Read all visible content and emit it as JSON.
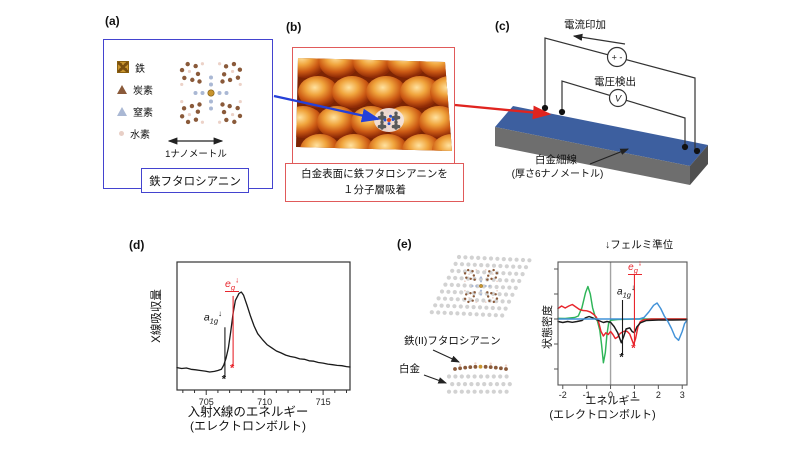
{
  "figure": {
    "background": "#ffffff"
  },
  "panels": {
    "a": {
      "tag": "(a)",
      "legend": [
        {
          "name": "iron",
          "label": "鉄",
          "color": "#c8942e"
        },
        {
          "name": "carbon",
          "label": "炭素",
          "color": "#8a5a3a"
        },
        {
          "name": "nitrogen",
          "label": "窒素",
          "color": "#aab8d4"
        },
        {
          "name": "hydrogen",
          "label": "水素",
          "color": "#e8cfc6"
        }
      ],
      "scale_label": "1ナノメートル",
      "caption": "鉄フタロシアニン",
      "box_color": "#4343cf"
    },
    "b": {
      "tag": "(b)",
      "caption_line1": "白金表面に鉄フタロシアニンを",
      "caption_line2": "１分子層吸着",
      "box_color": "#e05a5a"
    },
    "c": {
      "tag": "(c)",
      "current_label": "電流印加",
      "voltage_label": "電圧検出",
      "source_symbol": "+ -",
      "voltmeter_symbol": "V",
      "wire_label_line1": "白金細線",
      "wire_label_line2": "(厚さ6ナノメートル)",
      "slab_color": "#3d5f9f"
    },
    "d": {
      "tag": "(d)",
      "ylabel": "X線吸収量",
      "xlabel_line1": "入射X線のエネルギー",
      "xlabel_line2": "(エレクトロンボルト)"
    },
    "e": {
      "tag": "(e)",
      "fermi_label": "↓フェルミ準位",
      "molecule_label": "鉄(II)フタロシアニン",
      "platinum_label": "白金",
      "ylabel": "状態密度",
      "xlabel_line1": "エネルギー",
      "xlabel_line2": "(エレクトロンボルト)"
    }
  },
  "arrows": {
    "a_to_b_color": "#2540d8",
    "b_to_c_color": "#e0241f"
  },
  "chart_data": [
    {
      "type": "line",
      "panel": "d",
      "xlabel": "入射X線のエネルギー (エレクトロンボルト)",
      "ylabel": "X線吸収量",
      "xlim": [
        702.5,
        717.3
      ],
      "xticks": [
        705,
        710,
        715
      ],
      "minor_xtick_step": 1,
      "ylim": [
        0,
        1
      ],
      "grid": false,
      "series": [
        {
          "name": "X線吸収スペクトル",
          "color": "#1a1a1a",
          "points": [
            [
              702.5,
              0.175
            ],
            [
              702.9,
              0.168
            ],
            [
              703.3,
              0.172
            ],
            [
              703.7,
              0.162
            ],
            [
              704.1,
              0.158
            ],
            [
              704.5,
              0.152
            ],
            [
              704.9,
              0.148
            ],
            [
              705.3,
              0.141
            ],
            [
              705.7,
              0.145
            ],
            [
              706.0,
              0.152
            ],
            [
              706.3,
              0.162
            ],
            [
              706.5,
              0.195
            ],
            [
              706.7,
              0.25
            ],
            [
              706.9,
              0.33
            ],
            [
              707.1,
              0.46
            ],
            [
              707.3,
              0.6
            ],
            [
              707.5,
              0.7
            ],
            [
              707.8,
              0.755
            ],
            [
              708.0,
              0.766
            ],
            [
              708.2,
              0.74
            ],
            [
              708.5,
              0.66
            ],
            [
              708.8,
              0.575
            ],
            [
              709.1,
              0.5
            ],
            [
              709.4,
              0.44
            ],
            [
              709.8,
              0.395
            ],
            [
              710.2,
              0.355
            ],
            [
              710.6,
              0.33
            ],
            [
              711.0,
              0.305
            ],
            [
              711.4,
              0.29
            ],
            [
              711.8,
              0.273
            ],
            [
              712.2,
              0.262
            ],
            [
              712.6,
              0.255
            ],
            [
              713.0,
              0.243
            ],
            [
              713.4,
              0.24
            ],
            [
              713.8,
              0.228
            ],
            [
              714.2,
              0.225
            ],
            [
              714.6,
              0.215
            ],
            [
              715.0,
              0.21
            ],
            [
              715.4,
              0.202
            ],
            [
              715.8,
              0.198
            ],
            [
              716.2,
              0.192
            ],
            [
              716.6,
              0.19
            ],
            [
              717.0,
              0.183
            ],
            [
              717.3,
              0.18
            ]
          ]
        }
      ],
      "annotations": [
        {
          "base": "a",
          "sub": "1g",
          "arrow": "↓",
          "x": 706.6,
          "color": "#1a1a1a",
          "line_v": [
            0.1,
            0.49
          ],
          "marker": "*",
          "marker_v": 0.06
        },
        {
          "base": "e",
          "sub": "g",
          "arrow": "↓",
          "x": 707.3,
          "color": "#e8262d",
          "line_v": [
            0.19,
            0.735
          ],
          "marker": "*",
          "marker_v": 0.145,
          "underline": true
        }
      ]
    },
    {
      "type": "line",
      "panel": "e",
      "xlabel": "エネルギー (エレクトロンボルト)",
      "ylabel": "状態密度",
      "xlim": [
        -2.2,
        3.2
      ],
      "xticks": [
        -2,
        -1,
        0,
        1,
        2,
        3
      ],
      "ytick_values": [
        -2,
        -1,
        0,
        1,
        2
      ],
      "fermi_line_x": 0,
      "fermi_label": "↓フェルミ準位",
      "grid": false,
      "series": [
        {
          "name": "green",
          "color": "#2eb558",
          "points": [
            [
              -2.2,
              0.03
            ],
            [
              -1.9,
              0.02
            ],
            [
              -1.7,
              0.04
            ],
            [
              -1.5,
              0.06
            ],
            [
              -1.35,
              0.12
            ],
            [
              -1.2,
              0.45
            ],
            [
              -1.05,
              1.05
            ],
            [
              -0.95,
              1.3
            ],
            [
              -0.85,
              1.0
            ],
            [
              -0.75,
              0.45
            ],
            [
              -0.65,
              0.12
            ],
            [
              -0.55,
              -0.08
            ],
            [
              -0.45,
              -0.45
            ],
            [
              -0.38,
              -1.0
            ],
            [
              -0.3,
              -1.75
            ],
            [
              -0.22,
              -1.35
            ],
            [
              -0.15,
              -0.6
            ],
            [
              -0.08,
              -0.18
            ],
            [
              0.0,
              -0.05
            ],
            [
              0.3,
              -0.02
            ],
            [
              1.0,
              0.0
            ],
            [
              3.2,
              0.0
            ]
          ]
        },
        {
          "name": "red",
          "color": "#e8262d",
          "points": [
            [
              -2.2,
              0.42
            ],
            [
              -2.05,
              0.52
            ],
            [
              -1.9,
              0.44
            ],
            [
              -1.75,
              0.52
            ],
            [
              -1.6,
              0.58
            ],
            [
              -1.45,
              0.48
            ],
            [
              -1.3,
              0.38
            ],
            [
              -1.15,
              0.34
            ],
            [
              -1.0,
              0.33
            ],
            [
              -0.85,
              0.28
            ],
            [
              -0.7,
              0.18
            ],
            [
              -0.6,
              0.08
            ],
            [
              -0.5,
              -0.12
            ],
            [
              -0.4,
              -0.5
            ],
            [
              -0.3,
              -0.68
            ],
            [
              -0.2,
              -0.55
            ],
            [
              -0.1,
              -0.62
            ],
            [
              0.0,
              -0.5
            ],
            [
              0.1,
              -0.62
            ],
            [
              0.2,
              -0.78
            ],
            [
              0.3,
              -0.72
            ],
            [
              0.4,
              -0.58
            ],
            [
              0.5,
              -0.52
            ],
            [
              0.6,
              -0.48
            ],
            [
              0.7,
              -0.5
            ],
            [
              0.8,
              -0.6
            ],
            [
              0.9,
              -0.85
            ],
            [
              0.97,
              -1.02
            ],
            [
              1.05,
              -0.78
            ],
            [
              1.15,
              -0.3
            ],
            [
              1.25,
              -0.1
            ],
            [
              1.4,
              -0.03
            ],
            [
              1.7,
              0.0
            ],
            [
              3.2,
              0.0
            ]
          ]
        },
        {
          "name": "black",
          "color": "#1a1a1a",
          "points": [
            [
              -2.2,
              -0.1
            ],
            [
              -2.0,
              -0.14
            ],
            [
              -1.8,
              -0.1
            ],
            [
              -1.6,
              -0.13
            ],
            [
              -1.4,
              -0.1
            ],
            [
              -1.2,
              -0.06
            ],
            [
              -1.05,
              0.05
            ],
            [
              -0.9,
              0.1
            ],
            [
              -0.75,
              0.05
            ],
            [
              -0.6,
              -0.02
            ],
            [
              -0.45,
              -0.08
            ],
            [
              -0.3,
              -0.14
            ],
            [
              -0.15,
              -0.1
            ],
            [
              0.0,
              -0.13
            ],
            [
              0.15,
              -0.3
            ],
            [
              0.3,
              -0.55
            ],
            [
              0.45,
              -0.95
            ],
            [
              0.55,
              -0.7
            ],
            [
              0.65,
              -0.4
            ],
            [
              0.8,
              -0.35
            ],
            [
              0.9,
              -0.5
            ],
            [
              1.0,
              -0.55
            ],
            [
              1.1,
              -0.32
            ],
            [
              1.25,
              -0.15
            ],
            [
              1.5,
              -0.06
            ],
            [
              2.0,
              -0.04
            ],
            [
              2.6,
              -0.04
            ],
            [
              3.2,
              -0.03
            ]
          ]
        },
        {
          "name": "blue",
          "color": "#4292d8",
          "points": [
            [
              -2.2,
              0.0
            ],
            [
              0.0,
              0.0
            ],
            [
              1.2,
              0.0
            ],
            [
              1.4,
              0.06
            ],
            [
              1.6,
              0.28
            ],
            [
              1.8,
              0.55
            ],
            [
              1.95,
              0.64
            ],
            [
              2.1,
              0.42
            ],
            [
              2.25,
              0.12
            ],
            [
              2.4,
              -0.1
            ],
            [
              2.55,
              -0.38
            ],
            [
              2.7,
              -0.72
            ],
            [
              2.85,
              -0.85
            ],
            [
              3.0,
              -0.5
            ],
            [
              3.1,
              -0.18
            ],
            [
              3.2,
              -0.05
            ]
          ]
        }
      ],
      "annotations": [
        {
          "base": "a",
          "sub": "1g",
          "arrow": "↓",
          "x": 0.5,
          "color": "#1a1a1a",
          "line_v": [
            -1.44,
            0.76
          ],
          "marker": "*",
          "marker_v": -1.66
        },
        {
          "base": "e",
          "sub": "g",
          "arrow": "↓",
          "x": 1.0,
          "color": "#e8262d",
          "line_v": [
            -1.05,
            1.78
          ],
          "marker": "*",
          "marker_v": -1.3,
          "underline": true
        }
      ]
    }
  ]
}
